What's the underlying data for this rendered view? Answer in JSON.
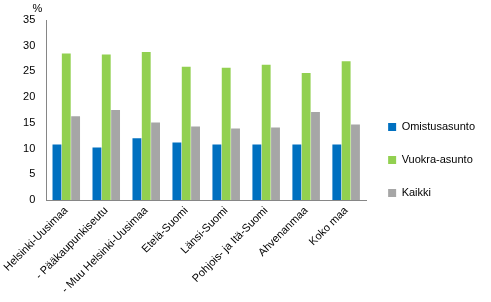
{
  "chart_data": {
    "type": "bar",
    "y_label": "%",
    "categories": [
      "Helsinki-Uusimaa",
      "- Pääkaupunkiseutu",
      "- Muu Helsinki-Uusimaa",
      "Etelä-Suomi",
      "Länsi-Suomi",
      "Pohjois- ja Itä-Suomi",
      "Ahvenanmaa",
      "Koko maa"
    ],
    "series": [
      {
        "name": "Omistusasunto",
        "color": "#0070c0",
        "values": [
          10.8,
          10.2,
          12.0,
          11.2,
          10.8,
          10.8,
          10.8,
          10.8
        ]
      },
      {
        "name": "Vuokra-asunto",
        "color": "#92d050",
        "values": [
          28.5,
          28.3,
          28.8,
          25.9,
          25.7,
          26.3,
          24.7,
          27.0
        ]
      },
      {
        "name": "Kaikki",
        "color": "#a6a6a6",
        "values": [
          16.3,
          17.5,
          15.1,
          14.3,
          13.9,
          14.1,
          17.1,
          14.7
        ]
      }
    ],
    "ylim": [
      0,
      35
    ],
    "yticks": [
      0,
      5,
      10,
      15,
      20,
      25,
      30,
      35
    ],
    "grid": false,
    "legend": "right"
  }
}
